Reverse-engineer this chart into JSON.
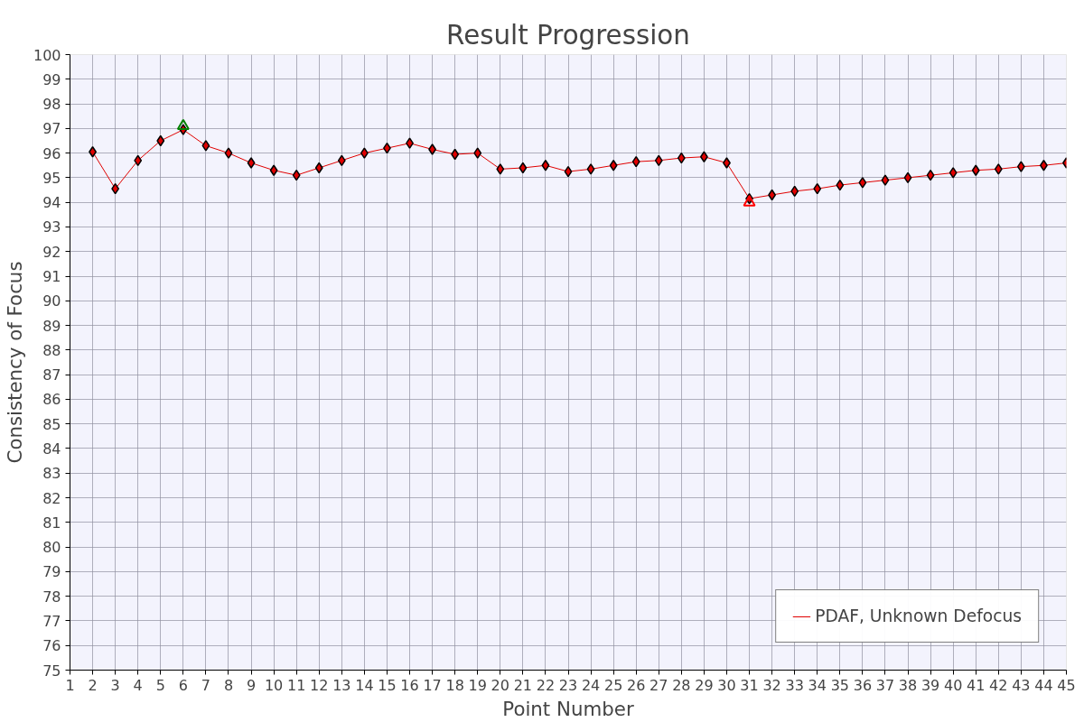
{
  "chart_data": {
    "type": "line",
    "title": "Result Progression",
    "xlabel": "Point Number",
    "ylabel": "Consistency of Focus",
    "xlim": [
      1,
      45
    ],
    "xticks": [
      1,
      2,
      3,
      4,
      5,
      6,
      7,
      8,
      9,
      10,
      11,
      12,
      13,
      14,
      15,
      16,
      17,
      18,
      19,
      20,
      21,
      22,
      23,
      24,
      25,
      26,
      27,
      28,
      29,
      30,
      31,
      32,
      33,
      34,
      35,
      36,
      37,
      38,
      39,
      40,
      41,
      42,
      43,
      44,
      45
    ],
    "ylim": [
      75,
      100
    ],
    "yticks": [
      75,
      76,
      77,
      78,
      79,
      80,
      81,
      82,
      83,
      84,
      85,
      86,
      87,
      88,
      89,
      90,
      91,
      92,
      93,
      94,
      95,
      96,
      97,
      98,
      99,
      100
    ],
    "grid": true,
    "legend": "bottom right",
    "marker": "diamond",
    "line_style": "solid",
    "series": [
      {
        "name": "PDAF, Unknown Defocus",
        "color": "#e00000",
        "x": [
          2,
          3,
          4,
          5,
          6,
          7,
          8,
          9,
          10,
          11,
          12,
          13,
          14,
          15,
          16,
          17,
          18,
          19,
          20,
          21,
          22,
          23,
          24,
          25,
          26,
          27,
          28,
          29,
          30,
          31,
          32,
          33,
          34,
          35,
          36,
          37,
          38,
          39,
          40,
          41,
          42,
          43,
          44,
          45
        ],
        "values": [
          96.05,
          94.55,
          95.7,
          96.5,
          96.95,
          96.3,
          96.0,
          95.6,
          95.3,
          95.1,
          95.4,
          95.7,
          96.0,
          96.2,
          96.4,
          96.15,
          95.95,
          96.0,
          95.35,
          95.4,
          95.5,
          95.25,
          95.35,
          95.5,
          95.65,
          95.7,
          95.8,
          95.85,
          95.6,
          94.15,
          94.3,
          94.45,
          94.55,
          94.7,
          94.8,
          94.9,
          95.0,
          95.1,
          95.2,
          95.3,
          95.35,
          95.45,
          95.5,
          95.6
        ]
      },
      {
        "type": "scatter",
        "marker": "triangle",
        "color": "#008000",
        "x": [
          6
        ],
        "values": [
          97.1
        ]
      },
      {
        "type": "scatter",
        "marker": "triangle",
        "color": "#ff0000",
        "x": [
          31
        ],
        "values": [
          94.0
        ]
      }
    ]
  }
}
